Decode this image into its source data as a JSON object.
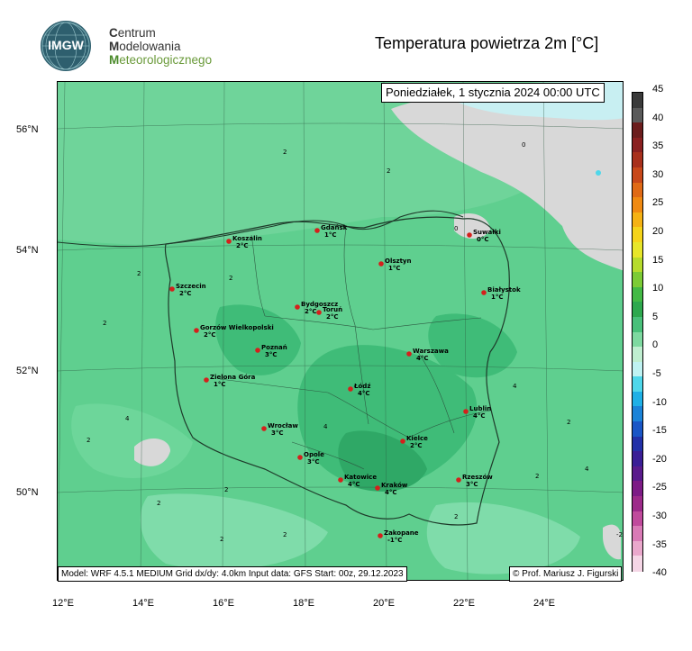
{
  "header": {
    "org_lines": [
      {
        "cap": "C",
        "rest": "entrum"
      },
      {
        "cap": "M",
        "rest": "odelowania"
      },
      {
        "cap": "M",
        "rest": "eteorologicznego"
      }
    ],
    "logo_text": "IMGW",
    "title": "Temperatura powietrza 2m [°C]"
  },
  "map": {
    "date": "Poniedziałek, 1 stycznia 2024 00:00 UTC",
    "footer_left": "Model: WRF 4.5.1 MEDIUM   Grid dx/dy: 4.0km   Input data: GFS   Start: 00z, 29.12.2023",
    "footer_right": "© Prof. Mariusz J. Figurski",
    "lat_labels": [
      "56°N",
      "54°N",
      "52°N",
      "50°N"
    ],
    "lon_labels": [
      "12°E",
      "14°E",
      "16°E",
      "18°E",
      "20°E",
      "22°E",
      "24°E"
    ],
    "cities": [
      {
        "name": "Koszalin",
        "temp": "2°C"
      },
      {
        "name": "Gdańsk",
        "temp": "1°C"
      },
      {
        "name": "Suwałki",
        "temp": "0°C"
      },
      {
        "name": "Olsztyn",
        "temp": "1°C"
      },
      {
        "name": "Szczecin",
        "temp": "2°C"
      },
      {
        "name": "Bydgoszcz",
        "temp": "2°C"
      },
      {
        "name": "Toruń",
        "temp": "2°C"
      },
      {
        "name": "Białystok",
        "temp": "1°C"
      },
      {
        "name": "Gorzów Wielkopolski",
        "temp": "2°C"
      },
      {
        "name": "Poznań",
        "temp": "3°C"
      },
      {
        "name": "Warszawa",
        "temp": "4°C"
      },
      {
        "name": "Zielona Góra",
        "temp": "1°C"
      },
      {
        "name": "Łódź",
        "temp": "4°C"
      },
      {
        "name": "Lublin",
        "temp": "4°C"
      },
      {
        "name": "Wrocław",
        "temp": "3°C"
      },
      {
        "name": "Kielce",
        "temp": "2°C"
      },
      {
        "name": "Opole",
        "temp": "3°C"
      },
      {
        "name": "Katowice",
        "temp": "4°C"
      },
      {
        "name": "Kraków",
        "temp": "4°C"
      },
      {
        "name": "Rzeszów",
        "temp": "3°C"
      },
      {
        "name": "Zakopane",
        "temp": "-1°C"
      }
    ],
    "contour_values": [
      "2",
      "2",
      "2",
      "2",
      "4",
      "2",
      "2",
      "4",
      "0",
      "0",
      "2",
      "2",
      "4",
      "2",
      "2",
      "-2",
      "4",
      "2",
      "2",
      "2"
    ]
  },
  "colorbar": {
    "ticks": [
      "45",
      "40",
      "35",
      "30",
      "25",
      "20",
      "15",
      "10",
      "5",
      "0",
      "-5",
      "-10",
      "-15",
      "-20",
      "-25",
      "-30",
      "-35",
      "-40"
    ],
    "colors": [
      "#3a3a3a",
      "#5a5a5a",
      "#6b1d1d",
      "#8a2020",
      "#a8301c",
      "#c8481a",
      "#e06a16",
      "#f08a12",
      "#f5b214",
      "#f5d41a",
      "#e7e62a",
      "#b6db2c",
      "#7ccb35",
      "#43b945",
      "#2ea84e",
      "#49c07a",
      "#7ed9a0",
      "#bfeed0",
      "#bff2f2",
      "#4fd7ea",
      "#1fb0e6",
      "#1b83d8",
      "#1a56c6",
      "#2331a8",
      "#3a1e96",
      "#5a1b8c",
      "#7d1b86",
      "#9d2a8a",
      "#c04a9c",
      "#d97ab6",
      "#eaa8cc",
      "#f5d6e6"
    ]
  }
}
